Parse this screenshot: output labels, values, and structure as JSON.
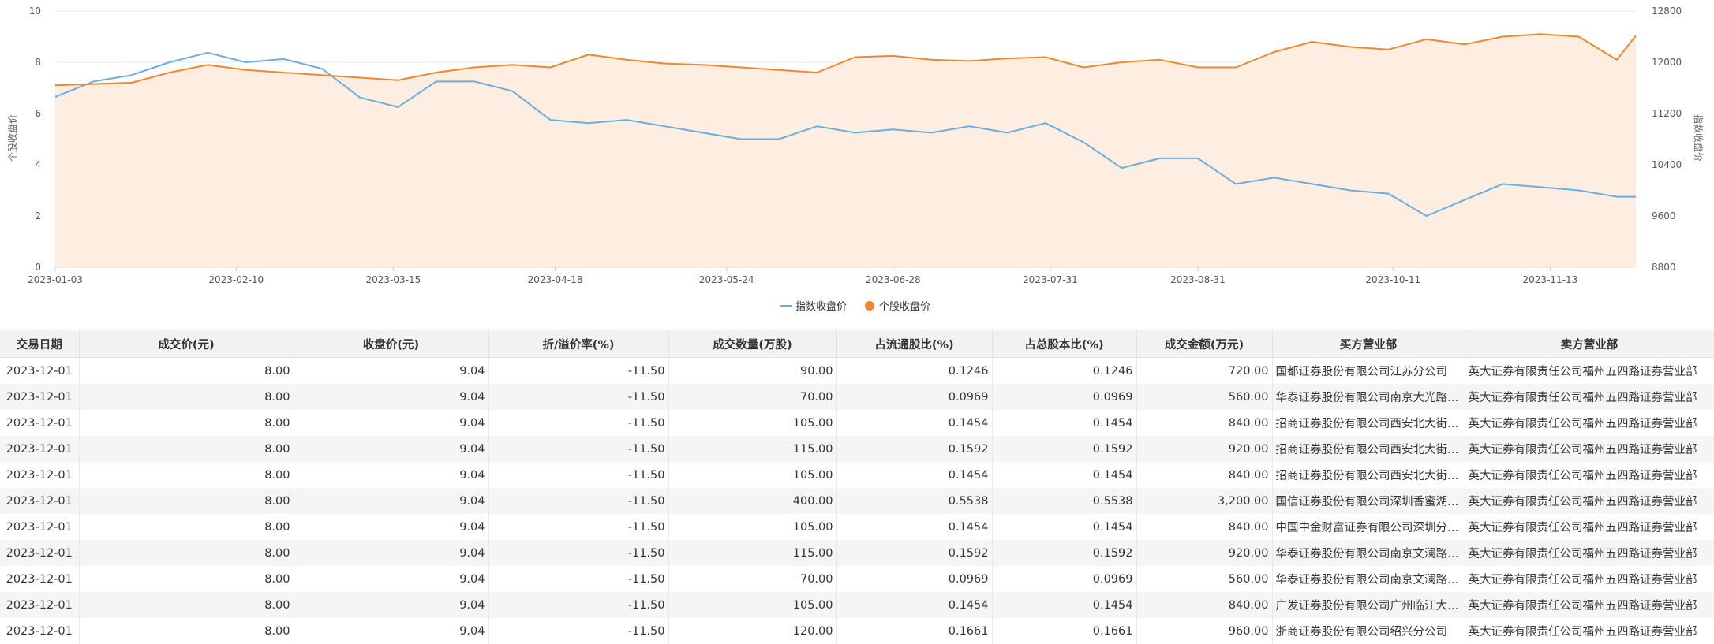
{
  "chart_data": {
    "type": "line",
    "x_dates": [
      "2023-01-03",
      "2023-01-11",
      "2023-01-19",
      "2023-01-27",
      "2023-02-04",
      "2023-02-12",
      "2023-02-20",
      "2023-02-28",
      "2023-03-08",
      "2023-03-16",
      "2023-03-24",
      "2023-04-01",
      "2023-04-09",
      "2023-04-17",
      "2023-04-25",
      "2023-05-03",
      "2023-05-11",
      "2023-05-19",
      "2023-05-27",
      "2023-06-04",
      "2023-06-12",
      "2023-06-20",
      "2023-06-28",
      "2023-07-06",
      "2023-07-14",
      "2023-07-22",
      "2023-07-30",
      "2023-08-07",
      "2023-08-15",
      "2023-08-23",
      "2023-08-31",
      "2023-09-08",
      "2023-09-16",
      "2023-09-24",
      "2023-10-02",
      "2023-10-10",
      "2023-10-18",
      "2023-10-26",
      "2023-11-03",
      "2023-11-11",
      "2023-11-19",
      "2023-11-27",
      "2023-12-01"
    ],
    "x_ticks": [
      "2023-01-03",
      "2023-02-10",
      "2023-03-15",
      "2023-04-18",
      "2023-05-24",
      "2023-06-28",
      "2023-07-31",
      "2023-08-31",
      "2023-10-11",
      "2023-11-13"
    ],
    "y_left_label": "个股收盘价",
    "y_left_range": [
      0,
      10
    ],
    "y_left_ticks": [
      "0",
      "2",
      "4",
      "6",
      "8",
      "10"
    ],
    "y_right_label": "指数收盘价",
    "y_right_range": [
      8800,
      12800
    ],
    "y_right_ticks": [
      "8800",
      "9600",
      "10400",
      "11200",
      "12000",
      "12800"
    ],
    "legend_position": "bottom-center",
    "series": [
      {
        "name": "指数收盘价",
        "axis": "right",
        "color": "#6aaee0",
        "values": [
          11460,
          11700,
          11800,
          12000,
          12150,
          12000,
          12050,
          11900,
          11450,
          11300,
          11700,
          11700,
          11550,
          11100,
          11050,
          11100,
          11000,
          10900,
          10800,
          10800,
          11000,
          10900,
          10950,
          10900,
          11000,
          10900,
          11050,
          10750,
          10350,
          10500,
          10500,
          10100,
          10200,
          10100,
          10000,
          9950,
          9600,
          9850,
          10100,
          10050,
          10000,
          9900,
          9900
        ]
      },
      {
        "name": "个股收盘价",
        "axis": "left",
        "color": "#f0872d",
        "fill": "#fdeee1",
        "values": [
          7.1,
          7.15,
          7.2,
          7.6,
          7.9,
          7.7,
          7.6,
          7.5,
          7.4,
          7.3,
          7.6,
          7.8,
          7.9,
          7.8,
          8.3,
          8.1,
          7.95,
          7.9,
          7.8,
          7.7,
          7.6,
          8.2,
          8.25,
          8.1,
          8.05,
          8.15,
          8.2,
          7.8,
          8.0,
          8.1,
          7.8,
          7.8,
          8.4,
          8.8,
          8.6,
          8.5,
          8.9,
          8.7,
          9.0,
          9.1,
          9.0,
          8.1,
          9.04
        ]
      }
    ]
  },
  "table": {
    "headers": [
      "交易日期",
      "成交价(元)",
      "收盘价(元)",
      "折/溢价率(%)",
      "成交数量(万股)",
      "占流通股比(%)",
      "占总股本比(%)",
      "成交金额(万元)",
      "买方营业部",
      "卖方营业部"
    ],
    "rows": [
      [
        "2023-12-01",
        "8.00",
        "9.04",
        "-11.50",
        "90.00",
        "0.1246",
        "0.1246",
        "720.00",
        "国都证券股份有限公司江苏分公司",
        "英大证券有限责任公司福州五四路证券营业部"
      ],
      [
        "2023-12-01",
        "8.00",
        "9.04",
        "-11.50",
        "70.00",
        "0.0969",
        "0.0969",
        "560.00",
        "华泰证券股份有限公司南京大光路证券营业部",
        "英大证券有限责任公司福州五四路证券营业部"
      ],
      [
        "2023-12-01",
        "8.00",
        "9.04",
        "-11.50",
        "105.00",
        "0.1454",
        "0.1454",
        "840.00",
        "招商证券股份有限公司西安北大街证券营业部",
        "英大证券有限责任公司福州五四路证券营业部"
      ],
      [
        "2023-12-01",
        "8.00",
        "9.04",
        "-11.50",
        "115.00",
        "0.1592",
        "0.1592",
        "920.00",
        "招商证券股份有限公司西安北大街证券营业部",
        "英大证券有限责任公司福州五四路证券营业部"
      ],
      [
        "2023-12-01",
        "8.00",
        "9.04",
        "-11.50",
        "105.00",
        "0.1454",
        "0.1454",
        "840.00",
        "招商证券股份有限公司西安北大街证券营业部",
        "英大证券有限责任公司福州五四路证券营业部"
      ],
      [
        "2023-12-01",
        "8.00",
        "9.04",
        "-11.50",
        "400.00",
        "0.5538",
        "0.5538",
        "3,200.00",
        "国信证券股份有限公司深圳香蜜湖证券营业部",
        "英大证券有限责任公司福州五四路证券营业部"
      ],
      [
        "2023-12-01",
        "8.00",
        "9.04",
        "-11.50",
        "105.00",
        "0.1454",
        "0.1454",
        "840.00",
        "中国中金财富证券有限公司深圳分公司",
        "英大证券有限责任公司福州五四路证券营业部"
      ],
      [
        "2023-12-01",
        "8.00",
        "9.04",
        "-11.50",
        "115.00",
        "0.1592",
        "0.1592",
        "920.00",
        "华泰证券股份有限公司南京文澜路证券营业部",
        "英大证券有限责任公司福州五四路证券营业部"
      ],
      [
        "2023-12-01",
        "8.00",
        "9.04",
        "-11.50",
        "70.00",
        "0.0969",
        "0.0969",
        "560.00",
        "华泰证券股份有限公司南京文澜路证券营业部",
        "英大证券有限责任公司福州五四路证券营业部"
      ],
      [
        "2023-12-01",
        "8.00",
        "9.04",
        "-11.50",
        "105.00",
        "0.1454",
        "0.1454",
        "840.00",
        "广发证券股份有限公司广州临江大道证券营业部",
        "英大证券有限责任公司福州五四路证券营业部"
      ],
      [
        "2023-12-01",
        "8.00",
        "9.04",
        "-11.50",
        "120.00",
        "0.1661",
        "0.1661",
        "960.00",
        "浙商证券股份有限公司绍兴分公司",
        "英大证券有限责任公司福州五四路证券营业部"
      ]
    ]
  }
}
